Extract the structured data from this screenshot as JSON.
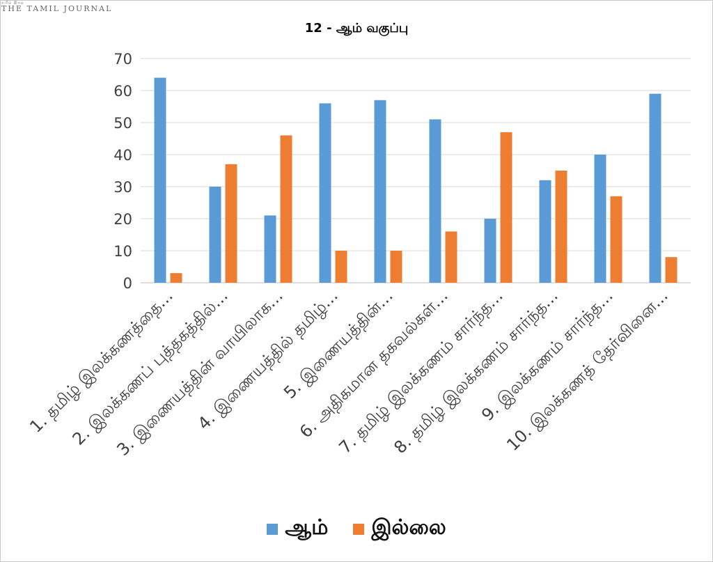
{
  "watermark": {
    "small": "தமிழ் இதழ்",
    "main": "THE TAMIL JOURNAL"
  },
  "chart_data": {
    "type": "bar",
    "title": "12 - ஆம் வகுப்பு",
    "xlabel": "",
    "ylabel": "",
    "ylim": [
      0,
      70
    ],
    "yticks": [
      0,
      10,
      20,
      30,
      40,
      50,
      60,
      70
    ],
    "grid": true,
    "legend_position": "bottom",
    "categories": [
      "1. தமிழ் இலக்கணத்தை...",
      "2. இலக்கணப் புத்தகத்தில்...",
      "3. இணையத்தின் வாயிலாக...",
      "4. இணையத்தில் தமிழ்...",
      "5. இணையத்தின்...",
      "6. அதிகமான தகவல்கள்...",
      "7. தமிழ் இலக்கணம் சார்ந்த...",
      "8. தமிழ் இலக்கணம் சார்ந்த...",
      "9. இலக்கணம் சார்ந்த...",
      "10. இலக்கணத் தேர்வினை..."
    ],
    "series": [
      {
        "name": "ஆம்",
        "color": "#5B9BD5",
        "values": [
          64,
          30,
          21,
          56,
          57,
          51,
          20,
          32,
          40,
          59
        ]
      },
      {
        "name": "இல்லை",
        "color": "#ED7D31",
        "values": [
          3,
          37,
          46,
          10,
          10,
          16,
          47,
          35,
          27,
          8
        ]
      }
    ]
  }
}
